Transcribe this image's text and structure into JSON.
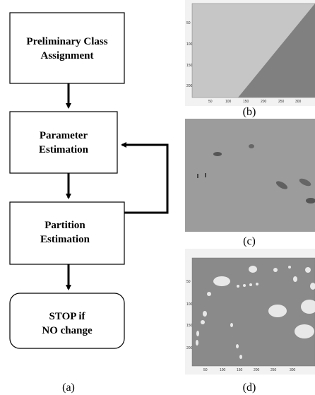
{
  "flowchart": {
    "nodes": [
      {
        "lines": [
          "Preliminary Class",
          "Assignment"
        ]
      },
      {
        "lines": [
          "Parameter",
          "Estimation"
        ]
      },
      {
        "lines": [
          "Partition",
          "Estimation"
        ]
      },
      {
        "lines": [
          "STOP if",
          "NO change"
        ]
      }
    ]
  },
  "panel_labels": [
    "(a)",
    "(b)",
    "(c)",
    "(d)"
  ],
  "plot_b": {
    "xticks": [
      50,
      100,
      150,
      200,
      250,
      300
    ],
    "yticks": [
      50,
      100,
      150,
      200
    ]
  },
  "plot_d": {
    "xticks": [
      50,
      100,
      150,
      200,
      250,
      300
    ],
    "yticks": [
      50,
      100,
      150,
      200
    ]
  }
}
